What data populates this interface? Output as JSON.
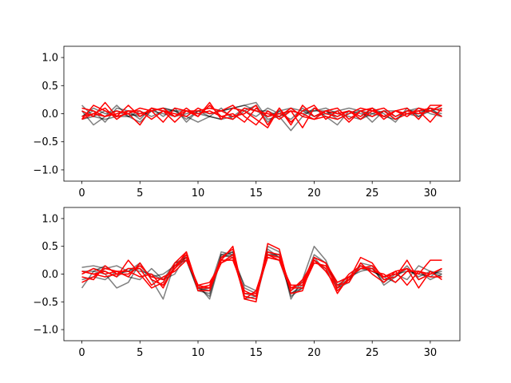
{
  "chart_data": [
    {
      "type": "line",
      "xlim": [
        -1.55,
        32.55
      ],
      "ylim": [
        -1.2,
        1.2
      ],
      "xticks": [
        0,
        5,
        10,
        15,
        20,
        25,
        30
      ],
      "yticks": [
        -1.0,
        -0.5,
        0.0,
        0.5,
        1.0
      ],
      "ytick_labels": [
        "−1.0",
        "−0.5",
        "0.0",
        "0.5",
        "1.0"
      ],
      "grid": false,
      "x": [
        0,
        1,
        2,
        3,
        4,
        5,
        6,
        7,
        8,
        9,
        10,
        11,
        12,
        13,
        14,
        15,
        16,
        17,
        18,
        19,
        20,
        21,
        22,
        23,
        24,
        25,
        26,
        27,
        28,
        29,
        30,
        31
      ],
      "series": [
        {
          "color": "#000000",
          "alpha": 0.5,
          "values": [
            0.15,
            -0.05,
            0.05,
            -0.05,
            -0.05,
            0.05,
            -0.05,
            0.05,
            0.05,
            -0.1,
            0.05,
            0.1,
            0.05,
            0.1,
            0.05,
            0.15,
            -0.15,
            0.05,
            -0.15,
            0.05,
            0.05,
            0.05,
            -0.05,
            0.05,
            0.0,
            -0.05,
            0.05,
            -0.1,
            0.05,
            0.05,
            0.05,
            0.1
          ]
        },
        {
          "color": "#000000",
          "alpha": 0.5,
          "values": [
            0.05,
            -0.2,
            -0.05,
            0.15,
            -0.05,
            -0.15,
            0.05,
            0.1,
            0.05,
            -0.05,
            -0.15,
            -0.05,
            -0.1,
            0.1,
            0.15,
            0.2,
            -0.1,
            -0.05,
            -0.3,
            -0.05,
            0.1,
            -0.05,
            -0.2,
            0.05,
            -0.1,
            0.1,
            0.0,
            -0.15,
            0.1,
            -0.05,
            0.1,
            0.05
          ]
        },
        {
          "color": "#000000",
          "alpha": 0.5,
          "values": [
            -0.05,
            0.05,
            -0.15,
            0.1,
            0.05,
            -0.1,
            0.1,
            -0.05,
            0.1,
            -0.15,
            0.05,
            -0.05,
            0.1,
            -0.1,
            0.05,
            -0.05,
            0.1,
            0.0,
            -0.1,
            0.1,
            -0.05,
            0.05,
            -0.1,
            0.0,
            0.05,
            -0.15,
            0.05,
            -0.05,
            0.05,
            0.1,
            0.0,
            -0.05
          ]
        },
        {
          "color": "#000000",
          "alpha": 0.5,
          "values": [
            -0.1,
            -0.05,
            -0.1,
            -0.05,
            0.0,
            -0.05,
            0.05,
            0.1,
            0.05,
            0.05,
            0.0,
            -0.05,
            -0.1,
            -0.05,
            0.1,
            0.05,
            0.05,
            -0.05,
            0.05,
            0.0,
            0.05,
            0.1,
            0.0,
            -0.05,
            -0.1,
            0.0,
            -0.05,
            -0.1,
            0.0,
            0.0,
            0.1,
            -0.05
          ]
        },
        {
          "color": "#000000",
          "alpha": 0.5,
          "values": [
            -0.05,
            0.1,
            0.0,
            0.05,
            -0.05,
            0.0,
            0.05,
            0.0,
            -0.05,
            0.0,
            0.05,
            0.0,
            0.05,
            0.1,
            0.15,
            0.05,
            -0.05,
            0.05,
            0.1,
            0.05,
            -0.05,
            0.0,
            0.05,
            0.1,
            0.05,
            0.0,
            0.05,
            0.05,
            0.0,
            -0.05,
            0.05,
            0.0
          ]
        },
        {
          "color": "#ff0000",
          "alpha": 1.0,
          "values": [
            -0.1,
            0.15,
            0.05,
            -0.05,
            0.15,
            -0.05,
            0.1,
            0.05,
            -0.05,
            0.1,
            -0.05,
            0.2,
            -0.1,
            0.1,
            0.05,
            -0.1,
            -0.25,
            0.1,
            -0.2,
            0.15,
            -0.05,
            0.05,
            0.1,
            -0.1,
            0.05,
            0.1,
            -0.1,
            0.05,
            0.1,
            -0.1,
            0.15,
            0.15
          ]
        },
        {
          "color": "#ff0000",
          "alpha": 1.0,
          "values": [
            0.05,
            -0.05,
            0.2,
            -0.05,
            0.0,
            0.1,
            0.05,
            -0.15,
            0.1,
            0.05,
            -0.05,
            0.15,
            -0.05,
            0.0,
            -0.15,
            0.1,
            -0.05,
            0.0,
            0.05,
            -0.25,
            0.1,
            0.0,
            -0.05,
            0.05,
            -0.05,
            0.1,
            -0.05,
            0.05,
            -0.05,
            0.1,
            0.05,
            -0.05
          ]
        },
        {
          "color": "#ff0000",
          "alpha": 1.0,
          "values": [
            -0.05,
            0.0,
            -0.05,
            0.05,
            0.0,
            -0.2,
            0.1,
            0.05,
            -0.15,
            0.05,
            0.0,
            0.05,
            -0.05,
            -0.1,
            0.1,
            0.05,
            0.0,
            -0.05,
            0.1,
            -0.05,
            -0.1,
            0.05,
            0.0,
            0.05,
            -0.1,
            0.05,
            0.1,
            -0.05,
            0.05,
            0.0,
            0.05,
            0.15
          ]
        },
        {
          "color": "#ff0000",
          "alpha": 1.0,
          "values": [
            0.1,
            0.05,
            -0.05,
            0.0,
            0.05,
            0.05,
            -0.1,
            0.05,
            0.0,
            -0.05,
            0.1,
            0.0,
            0.05,
            -0.05,
            0.0,
            0.15,
            -0.2,
            0.1,
            -0.15,
            0.05,
            0.15,
            -0.1,
            0.05,
            -0.15,
            0.05,
            -0.05,
            0.05,
            -0.1,
            0.0,
            0.05,
            -0.15,
            0.1
          ]
        },
        {
          "color": "#ff0000",
          "alpha": 1.0,
          "values": [
            -0.1,
            0.0,
            0.1,
            -0.1,
            0.05,
            0.0,
            0.05,
            0.1,
            -0.05,
            0.05,
            0.05,
            0.1,
            0.05,
            0.15,
            -0.05,
            -0.2,
            0.05,
            -0.1,
            0.05,
            0.0,
            -0.1,
            -0.05,
            -0.1,
            0.0,
            0.1,
            0.05,
            -0.05,
            0.05,
            0.0,
            0.05,
            0.1,
            0.05
          ]
        }
      ]
    },
    {
      "type": "line",
      "xlim": [
        -1.55,
        32.55
      ],
      "ylim": [
        -1.2,
        1.2
      ],
      "xticks": [
        0,
        5,
        10,
        15,
        20,
        25,
        30
      ],
      "yticks": [
        -1.0,
        -0.5,
        0.0,
        0.5,
        1.0
      ],
      "ytick_labels": [
        "−1.0",
        "−0.5",
        "0.0",
        "0.5",
        "1.0"
      ],
      "grid": false,
      "x": [
        0,
        1,
        2,
        3,
        4,
        5,
        6,
        7,
        8,
        9,
        10,
        11,
        12,
        13,
        14,
        15,
        16,
        17,
        18,
        19,
        20,
        21,
        22,
        23,
        24,
        25,
        26,
        27,
        28,
        29,
        30,
        31
      ],
      "series": [
        {
          "color": "#000000",
          "alpha": 0.5,
          "values": [
            0.12,
            0.15,
            0.1,
            0.15,
            0.05,
            0.1,
            -0.05,
            0.0,
            0.15,
            0.25,
            -0.3,
            -0.25,
            0.4,
            0.35,
            -0.25,
            -0.35,
            0.4,
            0.3,
            -0.35,
            -0.25,
            0.25,
            0.1,
            -0.2,
            -0.1,
            0.1,
            0.05,
            -0.05,
            0.0,
            -0.1,
            0.15,
            0.05,
            0.0
          ]
        },
        {
          "color": "#000000",
          "alpha": 0.5,
          "values": [
            -0.25,
            0.05,
            0.0,
            -0.25,
            -0.15,
            0.2,
            -0.1,
            -0.45,
            0.2,
            0.3,
            -0.2,
            -0.45,
            0.3,
            0.4,
            -0.45,
            -0.4,
            0.5,
            0.4,
            -0.45,
            -0.1,
            0.5,
            0.25,
            -0.25,
            -0.15,
            0.2,
            0.15,
            -0.2,
            -0.05,
            0.15,
            -0.1,
            0.0,
            0.05
          ]
        },
        {
          "color": "#000000",
          "alpha": 0.5,
          "values": [
            -0.1,
            -0.05,
            -0.1,
            0.05,
            -0.05,
            -0.1,
            0.1,
            -0.1,
            0.0,
            0.35,
            -0.25,
            -0.4,
            0.35,
            0.3,
            -0.2,
            -0.3,
            0.3,
            0.25,
            -0.35,
            -0.2,
            0.35,
            0.2,
            -0.2,
            -0.05,
            0.05,
            0.1,
            -0.15,
            0.0,
            0.05,
            0.0,
            -0.05,
            0.1
          ]
        },
        {
          "color": "#000000",
          "alpha": 0.5,
          "values": [
            0.05,
            0.05,
            0.15,
            0.0,
            0.05,
            0.2,
            -0.1,
            -0.2,
            0.15,
            0.3,
            -0.3,
            -0.35,
            0.35,
            0.4,
            -0.4,
            -0.45,
            0.35,
            0.35,
            -0.4,
            -0.25,
            0.3,
            0.05,
            -0.25,
            -0.1,
            0.15,
            0.1,
            -0.1,
            -0.05,
            0.1,
            -0.05,
            0.05,
            -0.05
          ]
        },
        {
          "color": "#000000",
          "alpha": 0.5,
          "values": [
            0.0,
            0.1,
            0.05,
            -0.05,
            0.1,
            0.05,
            0.0,
            -0.1,
            0.2,
            0.25,
            -0.25,
            -0.3,
            0.3,
            0.35,
            -0.35,
            -0.4,
            0.45,
            0.3,
            -0.3,
            -0.15,
            0.2,
            0.15,
            -0.15,
            -0.05,
            0.15,
            0.05,
            -0.05,
            -0.15,
            0.05,
            0.05,
            -0.1,
            0.0
          ]
        },
        {
          "color": "#ff0000",
          "alpha": 1.0,
          "values": [
            0.05,
            0.0,
            0.05,
            -0.05,
            0.25,
            0.0,
            -0.25,
            -0.15,
            0.2,
            0.4,
            -0.3,
            -0.3,
            0.25,
            0.5,
            -0.45,
            -0.5,
            0.55,
            0.45,
            -0.35,
            -0.3,
            0.3,
            0.2,
            -0.3,
            -0.1,
            0.3,
            0.2,
            -0.1,
            -0.05,
            0.25,
            -0.1,
            0.0,
            0.1
          ]
        },
        {
          "color": "#ff0000",
          "alpha": 1.0,
          "values": [
            -0.15,
            -0.05,
            0.1,
            0.05,
            -0.05,
            0.2,
            -0.1,
            -0.2,
            0.1,
            0.3,
            -0.2,
            -0.25,
            0.3,
            0.45,
            -0.45,
            -0.3,
            0.35,
            0.25,
            -0.2,
            -0.2,
            0.25,
            0.1,
            -0.35,
            -0.05,
            0.1,
            0.15,
            -0.05,
            0.05,
            0.1,
            0.0,
            0.25,
            0.25
          ]
        },
        {
          "color": "#ff0000",
          "alpha": 1.0,
          "values": [
            0.0,
            0.1,
            0.0,
            0.05,
            0.05,
            -0.05,
            0.0,
            -0.25,
            0.15,
            0.35,
            -0.25,
            -0.25,
            0.2,
            0.3,
            -0.4,
            -0.45,
            0.4,
            0.35,
            -0.25,
            -0.25,
            0.2,
            0.15,
            -0.2,
            -0.15,
            0.2,
            0.0,
            -0.15,
            0.05,
            -0.2,
            0.05,
            -0.05,
            -0.05
          ]
        },
        {
          "color": "#ff0000",
          "alpha": 1.0,
          "values": [
            -0.05,
            -0.1,
            0.15,
            0.0,
            0.1,
            0.1,
            -0.2,
            -0.05,
            0.05,
            0.25,
            -0.2,
            -0.15,
            0.2,
            0.35,
            -0.35,
            -0.35,
            0.3,
            0.25,
            -0.3,
            -0.1,
            0.25,
            0.05,
            -0.25,
            0.0,
            0.15,
            0.05,
            0.0,
            -0.15,
            0.05,
            0.05,
            0.0,
            0.1
          ]
        },
        {
          "color": "#ff0000",
          "alpha": 1.0,
          "values": [
            0.05,
            0.0,
            -0.05,
            0.0,
            0.0,
            0.15,
            -0.05,
            -0.1,
            0.1,
            0.4,
            -0.25,
            -0.2,
            0.25,
            0.25,
            -0.3,
            -0.4,
            0.35,
            0.3,
            -0.25,
            -0.15,
            0.3,
            0.2,
            -0.15,
            -0.05,
            0.1,
            0.1,
            -0.05,
            0.0,
            0.1,
            -0.25,
            0.05,
            -0.1
          ]
        }
      ]
    }
  ]
}
